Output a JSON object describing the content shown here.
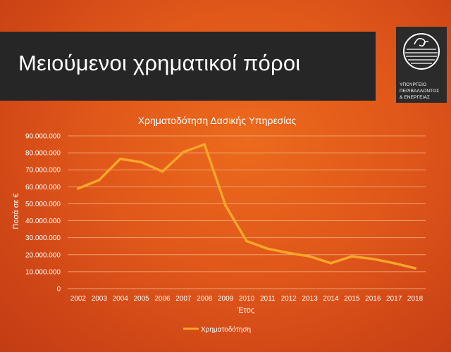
{
  "slide": {
    "title": "Μειούμενοι χρηματικοί πόροι"
  },
  "logo": {
    "icon": "ministry-emblem-icon",
    "line1": "ΥΠΟΥΡΓΕΙΟ",
    "line2": "ΠΕΡΙΒΑΛΛΟΝΤΟΣ",
    "line3": "& ΕΝΕΡΓΕΙΑΣ"
  },
  "colors": {
    "line": "#f7a62a",
    "gridline": "#f0a070",
    "title_bar": "#262626"
  },
  "chart_data": {
    "type": "line",
    "title": "Χρηματοδότηση Δασικής Υπηρεσίας",
    "xlabel": "Έτος",
    "ylabel": "Ποσά σε €",
    "categories": [
      "2002",
      "2003",
      "2004",
      "2005",
      "2006",
      "2007",
      "2008",
      "2009",
      "2010",
      "2011",
      "2012",
      "2013",
      "2014",
      "2015",
      "2016",
      "2017",
      "2018"
    ],
    "ylim": [
      0,
      90000000
    ],
    "yticks": [
      0,
      10000000,
      20000000,
      30000000,
      40000000,
      50000000,
      60000000,
      70000000,
      80000000,
      90000000
    ],
    "ytick_labels": [
      "0",
      "10.000.000",
      "20.000.000",
      "30.000.000",
      "40.000.000",
      "50.000.000",
      "60.000.000",
      "70.000.000",
      "80.000.000",
      "90.000.000"
    ],
    "grid": true,
    "legend_position": "bottom",
    "series": [
      {
        "name": "Χρηματοδότηση",
        "values": [
          59000000,
          64000000,
          76500000,
          74500000,
          69000000,
          80500000,
          85000000,
          49000000,
          28000000,
          23500000,
          21000000,
          19000000,
          15000000,
          19000000,
          17500000,
          15000000,
          12000000
        ]
      }
    ]
  }
}
